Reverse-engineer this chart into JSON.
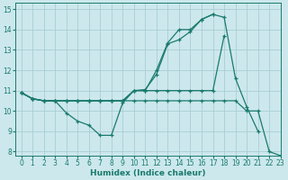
{
  "xlabel": "Humidex (Indice chaleur)",
  "xlim": [
    -0.5,
    23
  ],
  "ylim": [
    7.8,
    15.3
  ],
  "yticks": [
    8,
    9,
    10,
    11,
    12,
    13,
    14,
    15
  ],
  "xticks": [
    0,
    1,
    2,
    3,
    4,
    5,
    6,
    7,
    8,
    9,
    10,
    11,
    12,
    13,
    14,
    15,
    16,
    17,
    18,
    19,
    20,
    21,
    22,
    23
  ],
  "bg_color": "#cce8ec",
  "grid_color": "#aacdd4",
  "line_color": "#1a7a6e",
  "lines": [
    [
      10.9,
      10.6,
      10.5,
      10.5,
      9.9,
      9.5,
      9.3,
      8.8,
      8.8,
      10.4,
      11.0,
      11.05,
      11.8,
      13.3,
      13.5,
      13.9,
      14.5,
      14.75,
      14.6,
      11.6,
      10.2,
      9.0,
      null,
      null
    ],
    [
      10.9,
      10.6,
      10.5,
      10.5,
      10.5,
      10.5,
      10.5,
      10.5,
      10.5,
      10.5,
      11.0,
      11.0,
      12.0,
      13.35,
      14.0,
      14.0,
      14.5,
      14.75,
      null,
      null,
      null,
      null,
      null,
      null
    ],
    [
      10.9,
      10.6,
      10.5,
      10.5,
      10.5,
      10.5,
      10.5,
      10.5,
      10.5,
      10.5,
      11.0,
      11.0,
      11.0,
      11.0,
      11.0,
      11.0,
      11.0,
      11.0,
      13.7,
      null,
      null,
      null,
      null,
      null
    ],
    [
      10.9,
      10.6,
      10.5,
      10.5,
      10.5,
      10.5,
      10.5,
      10.5,
      10.5,
      10.5,
      10.5,
      10.5,
      10.5,
      10.5,
      10.5,
      10.5,
      10.5,
      10.5,
      10.5,
      10.5,
      10.0,
      10.0,
      8.0,
      7.8
    ]
  ]
}
